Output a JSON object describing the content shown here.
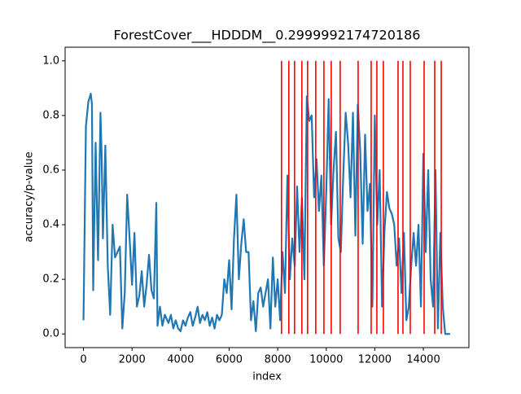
{
  "chart_data": {
    "type": "line",
    "title": "ForestCover___HDDDM__0.2999992174720186",
    "xlabel": "index",
    "ylabel": "accuracy/p-value",
    "color": "#1f77b4",
    "x": [
      0,
      100,
      200,
      300,
      350,
      400,
      500,
      600,
      700,
      750,
      800,
      900,
      1000,
      1100,
      1200,
      1300,
      1400,
      1500,
      1600,
      1700,
      1800,
      1900,
      2000,
      2100,
      2200,
      2300,
      2400,
      2500,
      2600,
      2700,
      2800,
      2900,
      3000,
      3050,
      3150,
      3250,
      3350,
      3500,
      3600,
      3700,
      3800,
      3900,
      4000,
      4100,
      4200,
      4300,
      4400,
      4500,
      4600,
      4700,
      4800,
      4900,
      5000,
      5100,
      5200,
      5300,
      5400,
      5500,
      5600,
      5700,
      5800,
      5900,
      6000,
      6100,
      6200,
      6300,
      6400,
      6500,
      6600,
      6700,
      6800,
      6900,
      7000,
      7100,
      7200,
      7300,
      7400,
      7500,
      7600,
      7700,
      7800,
      7900,
      8000,
      8100,
      8200,
      8300,
      8400,
      8500,
      8600,
      8700,
      8800,
      8900,
      9000,
      9100,
      9200,
      9300,
      9400,
      9500,
      9600,
      9700,
      9800,
      9900,
      10000,
      10100,
      10200,
      10300,
      10400,
      10500,
      10600,
      10700,
      10800,
      10900,
      11000,
      11100,
      11200,
      11300,
      11400,
      11500,
      11600,
      11700,
      11800,
      11900,
      12000,
      12100,
      12200,
      12300,
      12400,
      12500,
      12600,
      12700,
      12800,
      12900,
      13000,
      13100,
      13200,
      13300,
      13400,
      13500,
      13600,
      13700,
      13800,
      13900,
      14000,
      14100,
      14200,
      14300,
      14400,
      14500,
      14600,
      14700,
      14800,
      14900,
      15000,
      15100
    ],
    "values": [
      0.05,
      0.76,
      0.85,
      0.88,
      0.84,
      0.16,
      0.7,
      0.27,
      0.81,
      0.65,
      0.35,
      0.69,
      0.25,
      0.07,
      0.4,
      0.28,
      0.3,
      0.32,
      0.02,
      0.15,
      0.51,
      0.35,
      0.18,
      0.37,
      0.1,
      0.14,
      0.23,
      0.1,
      0.18,
      0.29,
      0.16,
      0.13,
      0.48,
      0.03,
      0.1,
      0.03,
      0.07,
      0.04,
      0.07,
      0.02,
      0.05,
      0.02,
      0.01,
      0.05,
      0.03,
      0.06,
      0.08,
      0.03,
      0.06,
      0.1,
      0.04,
      0.07,
      0.05,
      0.08,
      0.03,
      0.06,
      0.02,
      0.07,
      0.05,
      0.07,
      0.2,
      0.15,
      0.27,
      0.09,
      0.35,
      0.51,
      0.2,
      0.33,
      0.42,
      0.3,
      0.3,
      0.05,
      0.12,
      0.01,
      0.15,
      0.17,
      0.1,
      0.15,
      0.2,
      0.02,
      0.28,
      0.1,
      0.2,
      0.05,
      0.3,
      0.15,
      0.58,
      0.2,
      0.35,
      0.25,
      0.54,
      0.3,
      0.5,
      0.2,
      0.87,
      0.78,
      0.8,
      0.5,
      0.64,
      0.45,
      0.58,
      0.25,
      0.52,
      0.86,
      0.4,
      0.6,
      0.74,
      0.35,
      0.3,
      0.58,
      0.81,
      0.7,
      0.5,
      0.81,
      0.36,
      0.84,
      0.67,
      0.33,
      0.73,
      0.45,
      0.55,
      0.1,
      0.8,
      0.4,
      0.6,
      0.1,
      0.38,
      0.52,
      0.46,
      0.44,
      0.4,
      0.25,
      0.35,
      0.15,
      0.37,
      0.05,
      0.1,
      0.25,
      0.37,
      0.25,
      0.4,
      0.1,
      0.66,
      0.3,
      0.6,
      0.2,
      0.1,
      0.6,
      0.02,
      0.37,
      0.1,
      0.0,
      0.0,
      0.0
    ],
    "vlines": {
      "color": "red",
      "ymin": 0,
      "ymax": 1,
      "x": [
        8157,
        8459,
        8694,
        8996,
        9231,
        9567,
        9903,
        10205,
        10574,
        11313,
        11850,
        12085,
        12353,
        12957,
        13159,
        13461,
        14032,
        14468,
        14737
      ]
    },
    "xlim": [
      -756,
      15876
    ],
    "ylim": [
      -0.05,
      1.05
    ],
    "xticks": [
      0,
      2000,
      4000,
      6000,
      8000,
      10000,
      12000,
      14000
    ],
    "yticks": [
      {
        "value": 0,
        "label": "0.0"
      },
      0.2,
      0.4,
      0.6,
      0.8,
      {
        "value": 1,
        "label": "1.0"
      }
    ]
  }
}
